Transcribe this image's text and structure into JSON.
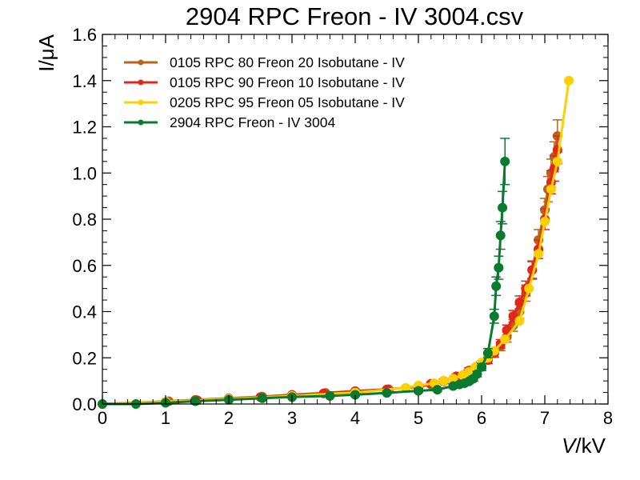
{
  "chart_data": {
    "type": "line",
    "title": "2904 RPC Freon - IV 3004.csv",
    "xlabel_italic": "V",
    "xlabel_rest": "/kV",
    "ylabel": "I/μA",
    "xlim": [
      0,
      8
    ],
    "ylim": [
      0,
      1.6
    ],
    "xticks": [
      "0",
      "1",
      "2",
      "3",
      "4",
      "5",
      "6",
      "7",
      "8"
    ],
    "yticks": [
      "0.0",
      "0.2",
      "0.4",
      "0.6",
      "0.8",
      "1.0",
      "1.2",
      "1.4",
      "1.6"
    ],
    "grid": false,
    "legend_position": "top-left",
    "series": [
      {
        "name": "0105 RPC 80 Freon 20 Isobutane - IV",
        "color": "#b5651d",
        "x": [
          0.0,
          1.05,
          1.47,
          2.0,
          2.53,
          3.0,
          3.53,
          4.0,
          4.53,
          5.0,
          5.2,
          5.4,
          5.6,
          5.75,
          5.9,
          6.0,
          6.1,
          6.2,
          6.3,
          6.4,
          6.5,
          6.6,
          6.7,
          6.8,
          6.9,
          7.0,
          7.05,
          7.1,
          7.15,
          7.2
        ],
        "y": [
          0.0,
          0.012,
          0.018,
          0.025,
          0.032,
          0.04,
          0.048,
          0.056,
          0.064,
          0.074,
          0.085,
          0.098,
          0.115,
          0.13,
          0.15,
          0.165,
          0.19,
          0.22,
          0.25,
          0.29,
          0.34,
          0.4,
          0.48,
          0.58,
          0.71,
          0.84,
          0.93,
          1.0,
          1.07,
          1.16
        ],
        "err": [
          0.002,
          0.003,
          0.003,
          0.004,
          0.004,
          0.005,
          0.005,
          0.006,
          0.006,
          0.007,
          0.008,
          0.009,
          0.01,
          0.011,
          0.012,
          0.013,
          0.015,
          0.017,
          0.019,
          0.022,
          0.025,
          0.03,
          0.035,
          0.04,
          0.045,
          0.05,
          0.055,
          0.06,
          0.065,
          0.07
        ]
      },
      {
        "name": "0105 RPC 90 Freon 10 Isobutane - IV",
        "color": "#e3261c",
        "x": [
          0.0,
          1.0,
          1.5,
          2.0,
          2.5,
          3.0,
          3.5,
          4.0,
          4.5,
          5.0,
          5.2,
          5.4,
          5.6,
          5.8,
          5.95,
          6.1,
          6.2,
          6.3,
          6.4,
          6.5,
          6.6,
          6.7,
          6.8,
          6.9,
          7.0,
          7.1,
          7.15,
          7.2
        ],
        "y": [
          0.0,
          0.01,
          0.016,
          0.022,
          0.03,
          0.038,
          0.046,
          0.055,
          0.063,
          0.075,
          0.088,
          0.1,
          0.12,
          0.145,
          0.165,
          0.19,
          0.22,
          0.26,
          0.32,
          0.38,
          0.44,
          0.5,
          0.58,
          0.67,
          0.8,
          0.96,
          1.02,
          1.1
        ],
        "err": [
          0.002,
          0.003,
          0.003,
          0.004,
          0.004,
          0.005,
          0.005,
          0.006,
          0.006,
          0.007,
          0.008,
          0.009,
          0.01,
          0.012,
          0.013,
          0.015,
          0.017,
          0.019,
          0.022,
          0.025,
          0.028,
          0.032,
          0.036,
          0.04,
          0.045,
          0.05,
          0.055,
          0.06
        ]
      },
      {
        "name": "0205 RPC 95 Freon 05 Isobutane - IV",
        "color": "#ffd000",
        "x": [
          0.0,
          1.0,
          2.0,
          3.0,
          4.0,
          4.8,
          5.0,
          5.25,
          5.4,
          5.55,
          5.7,
          5.8,
          5.9,
          6.0,
          6.1,
          6.2,
          6.37,
          6.6,
          6.75,
          6.9,
          7.0,
          7.1,
          7.2,
          7.38
        ],
        "y": [
          0.0,
          0.01,
          0.022,
          0.035,
          0.05,
          0.07,
          0.08,
          0.09,
          0.1,
          0.11,
          0.125,
          0.14,
          0.16,
          0.18,
          0.2,
          0.23,
          0.28,
          0.36,
          0.5,
          0.65,
          0.79,
          0.93,
          1.05,
          1.4
        ]
      },
      {
        "name": "2904 RPC Freon - IV 3004",
        "color": "#0a7a2e",
        "x": [
          0.0,
          0.53,
          1.0,
          1.47,
          2.0,
          2.53,
          3.0,
          3.6,
          4.0,
          4.5,
          5.0,
          5.3,
          5.55,
          5.65,
          5.73,
          5.8,
          5.87,
          5.93,
          6.0,
          6.1,
          6.2,
          6.23,
          6.27,
          6.3,
          6.33,
          6.37
        ],
        "y": [
          0.0,
          0.0,
          0.005,
          0.012,
          0.018,
          0.025,
          0.03,
          0.035,
          0.04,
          0.048,
          0.057,
          0.062,
          0.078,
          0.085,
          0.09,
          0.098,
          0.11,
          0.13,
          0.16,
          0.22,
          0.38,
          0.51,
          0.59,
          0.73,
          0.85,
          1.05
        ],
        "err": [
          0.002,
          0.002,
          0.002,
          0.003,
          0.003,
          0.004,
          0.004,
          0.005,
          0.005,
          0.006,
          0.006,
          0.007,
          0.008,
          0.008,
          0.009,
          0.01,
          0.011,
          0.012,
          0.015,
          0.02,
          0.03,
          0.04,
          0.05,
          0.06,
          0.07,
          0.1
        ]
      }
    ]
  }
}
